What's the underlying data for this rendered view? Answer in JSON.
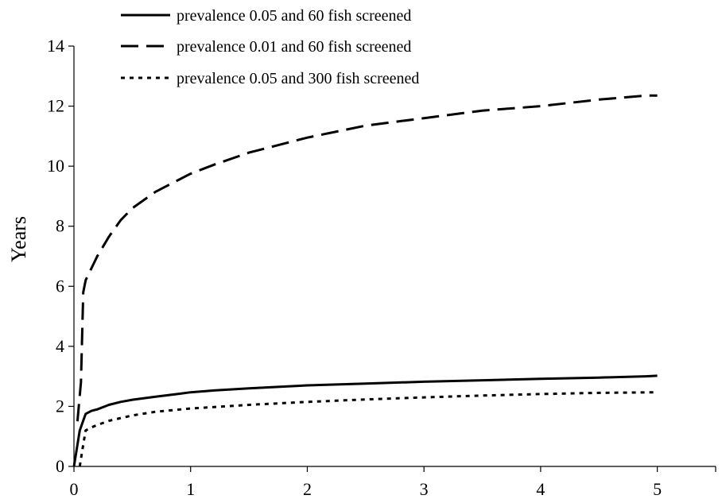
{
  "chart_data": {
    "type": "line",
    "title": "",
    "xlabel": "",
    "ylabel": "Years",
    "xlim": [
      0,
      5.5
    ],
    "ylim": [
      0,
      14
    ],
    "x_ticks": [
      0,
      1,
      2,
      3,
      4,
      5
    ],
    "x_tick_labels": [
      "0",
      "1",
      "2",
      "3",
      "4",
      "5"
    ],
    "y_ticks": [
      0,
      2,
      4,
      6,
      8,
      10,
      12,
      14
    ],
    "y_tick_labels": [
      "0",
      "2",
      "4",
      "6",
      "8",
      "10",
      "12",
      "14"
    ],
    "grid": false,
    "legend_position": "top",
    "series": [
      {
        "name": "prevalence 0.05 and 60 fish screened",
        "style": "solid",
        "color": "#000000",
        "points": [
          [
            0,
            0
          ],
          [
            0.05,
            1.2
          ],
          [
            0.1,
            1.75
          ],
          [
            0.15,
            1.85
          ],
          [
            0.2,
            1.9
          ],
          [
            0.3,
            2.05
          ],
          [
            0.4,
            2.15
          ],
          [
            0.5,
            2.22
          ],
          [
            0.7,
            2.32
          ],
          [
            0.9,
            2.42
          ],
          [
            1.0,
            2.47
          ],
          [
            1.2,
            2.53
          ],
          [
            1.5,
            2.6
          ],
          [
            1.8,
            2.66
          ],
          [
            2.0,
            2.7
          ],
          [
            2.5,
            2.76
          ],
          [
            3.0,
            2.82
          ],
          [
            3.5,
            2.87
          ],
          [
            4.0,
            2.92
          ],
          [
            4.5,
            2.96
          ],
          [
            4.9,
            3.0
          ],
          [
            5.0,
            3.02
          ]
        ]
      },
      {
        "name": "prevalence 0.01 and 60 fish screened",
        "style": "dashed",
        "color": "#000000",
        "points": [
          [
            0.03,
            1.5
          ],
          [
            0.06,
            2.8
          ],
          [
            0.08,
            5.8
          ],
          [
            0.1,
            6.2
          ],
          [
            0.15,
            6.6
          ],
          [
            0.2,
            7.0
          ],
          [
            0.3,
            7.65
          ],
          [
            0.4,
            8.2
          ],
          [
            0.5,
            8.6
          ],
          [
            0.7,
            9.15
          ],
          [
            1.0,
            9.75
          ],
          [
            1.2,
            10.05
          ],
          [
            1.5,
            10.45
          ],
          [
            2.0,
            10.95
          ],
          [
            2.5,
            11.35
          ],
          [
            3.0,
            11.6
          ],
          [
            3.5,
            11.85
          ],
          [
            4.0,
            12.0
          ],
          [
            4.5,
            12.22
          ],
          [
            4.9,
            12.35
          ],
          [
            5.0,
            12.35
          ]
        ]
      },
      {
        "name": "prevalence 0.05 and 300 fish screened",
        "style": "dotted",
        "color": "#000000",
        "points": [
          [
            0.05,
            0.0
          ],
          [
            0.07,
            0.5
          ],
          [
            0.1,
            1.2
          ],
          [
            0.15,
            1.3
          ],
          [
            0.2,
            1.38
          ],
          [
            0.3,
            1.52
          ],
          [
            0.5,
            1.7
          ],
          [
            0.7,
            1.82
          ],
          [
            1.0,
            1.93
          ],
          [
            1.5,
            2.05
          ],
          [
            2.0,
            2.15
          ],
          [
            2.5,
            2.23
          ],
          [
            3.0,
            2.3
          ],
          [
            3.5,
            2.36
          ],
          [
            4.0,
            2.41
          ],
          [
            4.5,
            2.45
          ],
          [
            5.0,
            2.47
          ]
        ]
      }
    ]
  }
}
